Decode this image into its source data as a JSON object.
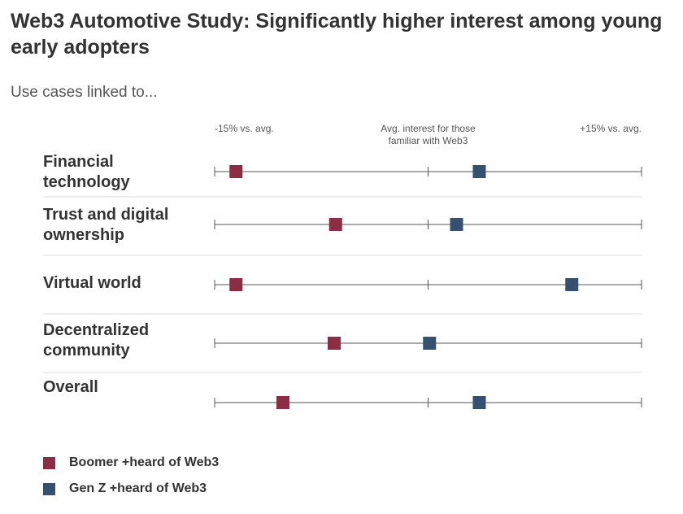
{
  "title": "Web3 Automotive Study: Significantly higher interest among young early adopters",
  "subtitle": "Use cases linked to...",
  "colors": {
    "boomer": "#8b2e45",
    "genz": "#36506f",
    "axis": "#555555",
    "divider": "#dddddd"
  },
  "chart_data": {
    "type": "dot",
    "tick_labels": {
      "left": "-15% vs. avg.",
      "center": "Avg. interest for those familiar with Web3",
      "right": "+15% vs. avg."
    },
    "xlim": [
      -15,
      15
    ],
    "categories": [
      "Financial technology",
      "Trust and digital ownership",
      "Virtual world",
      "Decentralized community",
      "Overall"
    ],
    "series": [
      {
        "name": "Boomer +heard of Web3",
        "color": "#8b2e45",
        "values": [
          -13.5,
          -6.5,
          -13.5,
          -6.6,
          -10.2
        ]
      },
      {
        "name": "Gen Z +heard of Web3",
        "color": "#36506f",
        "values": [
          3.6,
          2.0,
          10.1,
          0.1,
          3.6
        ]
      }
    ]
  }
}
